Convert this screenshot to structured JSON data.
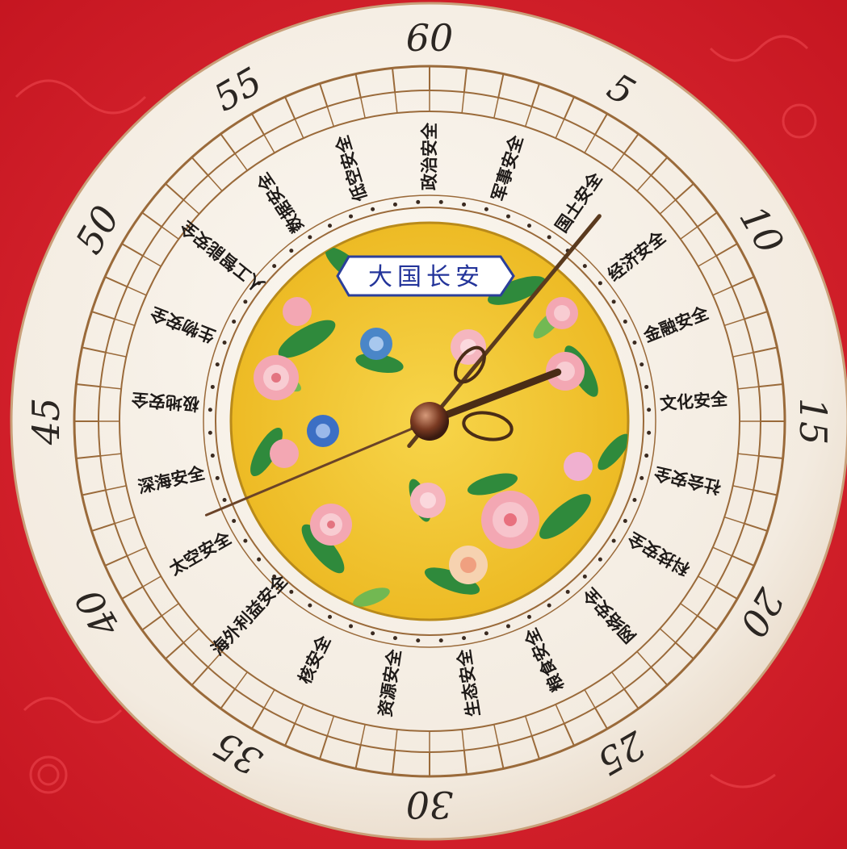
{
  "plaque_title": "大国长安",
  "numerals": [
    "5",
    "10",
    "15",
    "20",
    "25",
    "30",
    "35",
    "40",
    "45",
    "50",
    "55",
    "60"
  ],
  "security_domains": [
    "政治安全",
    "军事安全",
    "国土安全",
    "经济安全",
    "金融安全",
    "文化安全",
    "社会安全",
    "科技安全",
    "网络安全",
    "粮食安全",
    "生态安全",
    "资源安全",
    "核安全",
    "海外利益安全",
    "太空安全",
    "深海安全",
    "极地安全",
    "生物安全",
    "人工智能安全",
    "数据安全",
    "低空安全"
  ],
  "hands": {
    "minute_value": 6.6,
    "second_value": 41.2,
    "hour_value": 2.3
  },
  "colors": {
    "background": "#d8202c",
    "dial": "#f6efe6",
    "ring_line": "#9a6a3a",
    "center_plate": "#f2c531",
    "plaque_border": "#2b3f9a",
    "hands": "#5a3a1e"
  },
  "icons": [
    "flower-motif-icon",
    "clock-hands-icon"
  ]
}
